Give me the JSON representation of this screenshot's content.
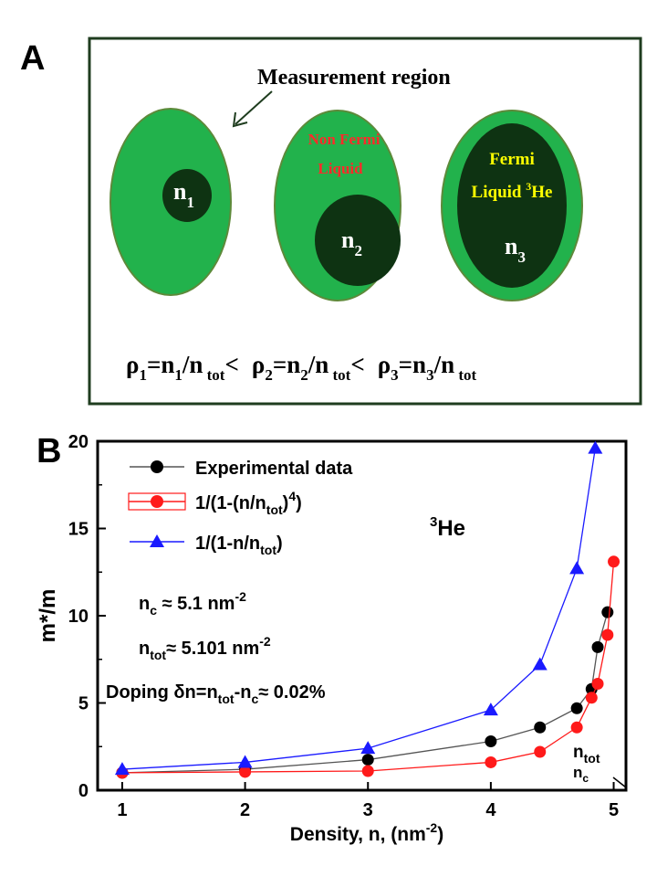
{
  "panel_a": {
    "letter": "A",
    "callout": "Measurement region",
    "circles": [
      {
        "label_main": "n",
        "label_sub": "1"
      },
      {
        "caption_line1": "Non Fermi",
        "caption_line2": "Liquid",
        "label_main": "n",
        "label_sub": "2"
      },
      {
        "caption_line1": "Fermi",
        "caption_line2_prefix": "Liquid ",
        "caption_line2_sup": "3",
        "caption_line2_suffix": "He",
        "label_main": "n",
        "label_sub": "3"
      }
    ],
    "equation": [
      {
        "lhs": "ρ",
        "lhs_sub": "1",
        "eq": "=n",
        "num_sub": "1",
        "slash": "/n",
        "den_sub": " tot",
        "op": "<"
      },
      {
        "lhs": "ρ",
        "lhs_sub": "2",
        "eq": "=n",
        "num_sub": "2",
        "slash": "/n",
        "den_sub": " tot",
        "op": "<"
      },
      {
        "lhs": "ρ",
        "lhs_sub": "3",
        "eq": "=n",
        "num_sub": "3",
        "slash": "/n",
        "den_sub": " tot",
        "op": ""
      }
    ],
    "colors": {
      "frame": "#1f3d1f",
      "light": "#22b24c",
      "dark": "#0e3312",
      "non_fermi": "#ff2a2a",
      "fermi": "#ffff00",
      "label": "#ffffff"
    }
  },
  "panel_b": {
    "letter": "B",
    "legend": [
      {
        "prefix": "Experimental data"
      },
      {
        "prefix": "1/(1-(n/n",
        "sub": "tot",
        "mid": ")",
        "sup": "4",
        "suffix": ")"
      },
      {
        "prefix": "1/(1-n/n",
        "sub": "tot",
        "suffix": ")"
      }
    ],
    "he3": {
      "sup": "3",
      "text": "He"
    },
    "annot_nc": {
      "main": "n",
      "sub": "c",
      "rest": " ≈ 5.1 nm",
      "sup": "-2"
    },
    "annot_ntot": {
      "main": "n",
      "sub": "tot",
      "rest": "≈ 5.101 nm",
      "sup": "-2"
    },
    "annot_doping": {
      "text1": "Doping δn=n",
      "sub1": "tot",
      "text2": "-n",
      "sub2": "c",
      "text3": "≈ 0.02%"
    },
    "corner_ntot": {
      "main": "n",
      "sub": "tot"
    },
    "corner_nc": {
      "main": "n",
      "sub": "c"
    }
  },
  "chart_data": {
    "type": "line",
    "xlabel": "Density, n, (nm",
    "xlabel_sup": "-2",
    "xlabel_end": ")",
    "ylabel": "m*/m",
    "xlim": [
      0.8,
      5.1
    ],
    "ylim": [
      0,
      20
    ],
    "xticks": [
      1,
      2,
      3,
      4,
      5
    ],
    "yticks": [
      0,
      5,
      10,
      15,
      20
    ],
    "series": [
      {
        "name": "Experimental data",
        "color": "#000000",
        "line_color": "#555555",
        "marker": "circle",
        "x": [
          1,
          2,
          3,
          4,
          4.4,
          4.7,
          4.82,
          4.87,
          4.95
        ],
        "y": [
          1.0,
          1.2,
          1.75,
          2.8,
          3.6,
          4.7,
          5.8,
          8.2,
          10.2
        ]
      },
      {
        "name": "1/(1-(n/ntot)^4)",
        "color": "#ff1a1a",
        "line_color": "#ff1a1a",
        "marker": "circle",
        "x": [
          1,
          2,
          3,
          4,
          4.4,
          4.7,
          4.82,
          4.87,
          4.95,
          5.0
        ],
        "y": [
          1.0,
          1.05,
          1.1,
          1.6,
          2.2,
          3.6,
          5.3,
          6.1,
          8.9,
          13.1
        ]
      },
      {
        "name": "1/(1-n/ntot)",
        "color": "#1a1aff",
        "line_color": "#1a1aff",
        "marker": "triangle",
        "x": [
          1,
          2,
          3,
          4,
          4.4,
          4.7,
          4.85
        ],
        "y": [
          1.2,
          1.6,
          2.4,
          4.6,
          7.2,
          12.7,
          19.6
        ]
      }
    ]
  }
}
